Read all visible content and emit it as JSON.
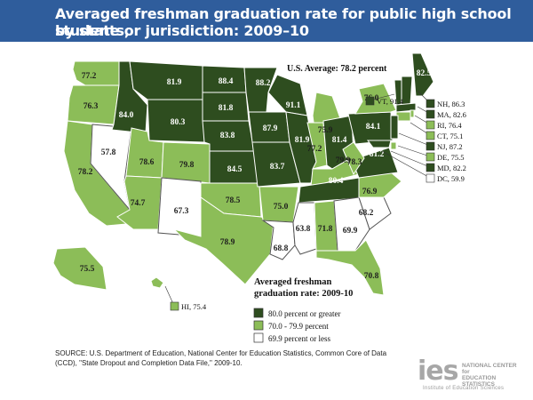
{
  "title_line1": "Averaged freshman graduation rate for public high school students,",
  "title_line2": "by state or jurisdiction: 2009–10",
  "us_average": "U.S. Average: 78.2 percent",
  "colors": {
    "dark": "#2e4d1f",
    "light": "#8cbd58",
    "white": "#ffffff",
    "border": "#ffffff",
    "header": "#2f5d9c"
  },
  "legend": {
    "title_line1": "Averaged freshman",
    "title_line2": "graduation rate: 2009-10",
    "items": [
      {
        "label": "80.0 percent or greater",
        "category": "dark"
      },
      {
        "label": "70.0 - 79.9 percent",
        "category": "light"
      },
      {
        "label": "69.9 percent or less",
        "category": "white"
      }
    ]
  },
  "states": [
    {
      "state": "WA",
      "value": "77.2",
      "category": "light"
    },
    {
      "state": "OR",
      "value": "76.3",
      "category": "light"
    },
    {
      "state": "CA",
      "value": "78.2",
      "category": "light"
    },
    {
      "state": "NV",
      "value": "57.8",
      "category": "white"
    },
    {
      "state": "ID",
      "value": "84.0",
      "category": "dark"
    },
    {
      "state": "MT",
      "value": "81.9",
      "category": "dark"
    },
    {
      "state": "WY",
      "value": "80.3",
      "category": "dark"
    },
    {
      "state": "UT",
      "value": "78.6",
      "category": "light"
    },
    {
      "state": "AZ",
      "value": "74.7",
      "category": "light"
    },
    {
      "state": "CO",
      "value": "79.8",
      "category": "light"
    },
    {
      "state": "NM",
      "value": "67.3",
      "category": "white"
    },
    {
      "state": "ND",
      "value": "88.4",
      "category": "dark"
    },
    {
      "state": "SD",
      "value": "81.8",
      "category": "dark"
    },
    {
      "state": "NE",
      "value": "83.8",
      "category": "dark"
    },
    {
      "state": "KS",
      "value": "84.5",
      "category": "dark"
    },
    {
      "state": "OK",
      "value": "78.5",
      "category": "light"
    },
    {
      "state": "TX",
      "value": "78.9",
      "category": "light"
    },
    {
      "state": "MN",
      "value": "88.2",
      "category": "dark"
    },
    {
      "state": "IA",
      "value": "87.9",
      "category": "dark"
    },
    {
      "state": "MO",
      "value": "83.7",
      "category": "dark"
    },
    {
      "state": "AR",
      "value": "75.0",
      "category": "light"
    },
    {
      "state": "LA",
      "value": "68.8",
      "category": "white"
    },
    {
      "state": "WI",
      "value": "91.1",
      "category": "dark"
    },
    {
      "state": "IL",
      "value": "81.9",
      "category": "dark"
    },
    {
      "state": "MI",
      "value": "75.9",
      "category": "light"
    },
    {
      "state": "IN",
      "value": "77.2",
      "category": "light"
    },
    {
      "state": "OH",
      "value": "81.4",
      "category": "dark"
    },
    {
      "state": "KY",
      "value": "79.9",
      "category": "light"
    },
    {
      "state": "TN",
      "value": "80.4",
      "category": "dark"
    },
    {
      "state": "MS",
      "value": "63.8",
      "category": "white"
    },
    {
      "state": "AL",
      "value": "71.8",
      "category": "light"
    },
    {
      "state": "GA",
      "value": "69.9",
      "category": "white"
    },
    {
      "state": "FL",
      "value": "70.8",
      "category": "light"
    },
    {
      "state": "SC",
      "value": "68.2",
      "category": "white"
    },
    {
      "state": "NC",
      "value": "76.9",
      "category": "light"
    },
    {
      "state": "VA",
      "value": "81.2",
      "category": "dark"
    },
    {
      "state": "WV",
      "value": "78.3",
      "category": "light"
    },
    {
      "state": "PA",
      "value": "84.1",
      "category": "dark"
    },
    {
      "state": "NY",
      "value": "76.0",
      "category": "light"
    },
    {
      "state": "ME",
      "value": "82.5",
      "category": "dark"
    },
    {
      "state": "AK",
      "value": "75.5",
      "category": "light"
    }
  ],
  "callouts": [
    {
      "state": "VT",
      "text": "VT, 91.4",
      "category": "dark"
    },
    {
      "state": "NH",
      "text": "NH, 86.3",
      "category": "dark"
    },
    {
      "state": "MA",
      "text": "MA, 82.6",
      "category": "dark"
    },
    {
      "state": "RI",
      "text": "RI, 76.4",
      "category": "light"
    },
    {
      "state": "CT",
      "text": "CT, 75.1",
      "category": "light"
    },
    {
      "state": "NJ",
      "text": "NJ, 87.2",
      "category": "dark"
    },
    {
      "state": "DE",
      "text": "DE, 75.5",
      "category": "light"
    },
    {
      "state": "MD",
      "text": "MD, 82.2",
      "category": "dark"
    },
    {
      "state": "DC",
      "text": "DC, 59.9",
      "category": "white"
    },
    {
      "state": "HI",
      "text": "HI, 75.4",
      "category": "light"
    }
  ],
  "source": "SOURCE: U.S. Department of Education, National Center for Education Statistics, Common Core of Data (CCD), \"State Dropout and Completion Data File,\" 2009-10.",
  "logo": {
    "mark": "ies",
    "name_line1": "NATIONAL CENTER for",
    "name_line2": "EDUCATION STATISTICS",
    "subtitle": "Institute of Education Sciences"
  }
}
